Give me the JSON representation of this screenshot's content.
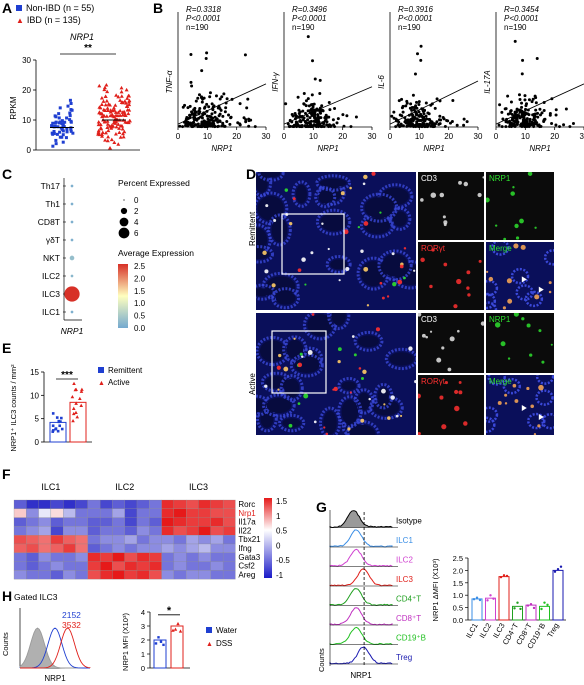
{
  "panels": [
    "A",
    "B",
    "C",
    "D",
    "E",
    "F",
    "G",
    "H"
  ],
  "panel_a": {
    "legend": [
      {
        "label": "Non-IBD (n = 55)",
        "color": "#1f3fd1",
        "marker": "square"
      },
      {
        "label": "IBD (n = 135)",
        "color": "#e0201b",
        "marker": "triangle"
      }
    ],
    "title": "NRP1",
    "ylabel": "RPKM",
    "sig": "**"
  },
  "panel_b": {
    "xlabel": "NRP1",
    "plots": [
      {
        "ylabel": "TNF-α",
        "R": "R=0.3318",
        "P": "P<0.0001",
        "n": "n=190"
      },
      {
        "ylabel": "IFN-γ",
        "R": "R=0.3496",
        "P": "P<0.0001",
        "n": "n=190"
      },
      {
        "ylabel": "IL-6",
        "R": "R=0.3916",
        "P": "P<0.0001",
        "n": "n=190"
      },
      {
        "ylabel": "IL-17A",
        "R": "R=0.3454",
        "P": "P<0.0001",
        "n": "n=190"
      }
    ]
  },
  "panel_c": {
    "cells": [
      "Th17",
      "Th1",
      "CD8T",
      "γδT",
      "NKT",
      "ILC2",
      "ILC3",
      "ILC1"
    ],
    "xlabel": "NRP1",
    "size_title": "Percent Expressed",
    "size_ticks": [
      "0",
      "2",
      "4",
      "6"
    ],
    "color_title": "Average Expression",
    "color_ticks": [
      "2.5",
      "2.0",
      "1.5",
      "1.0",
      "0.5",
      "0.0"
    ]
  },
  "panel_d": {
    "rows": [
      "Remittent",
      "Active"
    ],
    "channels": [
      "CD3",
      "NRP1",
      "RORγt",
      "Merge"
    ],
    "channel_colors": [
      "#ffffff",
      "#2ee02e",
      "#ff3030",
      "#ffffff"
    ]
  },
  "panel_e": {
    "ylabel": "NRP1⁺ ILC3 counts / mm²",
    "legend": [
      {
        "label": "Remittent",
        "color": "#1f3fd1"
      },
      {
        "label": "Active",
        "color": "#e0201b"
      }
    ],
    "sig": "***"
  },
  "panel_f": {
    "groups": [
      "ILC1",
      "ILC2",
      "ILC3"
    ],
    "genes": [
      "Rorc",
      "Nrp1",
      "Il17a",
      "Il22",
      "Tbx21",
      "Ifng",
      "Gata3",
      "Csf2",
      "Areg"
    ],
    "gene_colors": [
      "#000000",
      "#e0201b",
      "#000000",
      "#000000",
      "#000000",
      "#000000",
      "#000000",
      "#000000",
      "#000000"
    ],
    "scale_ticks": [
      "1.5",
      "1",
      "0.5",
      "0",
      "-0.5",
      "-1"
    ]
  },
  "panel_g": {
    "rows": [
      {
        "label": "Isotype",
        "color": "#000000"
      },
      {
        "label": "ILC1",
        "color": "#3a8ee6"
      },
      {
        "label": "ILC2",
        "color": "#d040d0"
      },
      {
        "label": "ILC3",
        "color": "#e0201b"
      },
      {
        "label": "CD4⁺T",
        "color": "#20a020"
      },
      {
        "label": "CD8⁺T",
        "color": "#c030c0"
      },
      {
        "label": "CD19⁺B",
        "color": "#20c020"
      },
      {
        "label": "Treg",
        "color": "#1a1ab0"
      }
    ],
    "xlabel": "NRP1",
    "ylabel": "Counts",
    "bar_ylabel": "NRP1 ΔMFI (X10³)",
    "bar_ticks": [
      "2.5",
      "2.0",
      "1.5",
      "1.0",
      "0.5",
      "0.0"
    ]
  },
  "panel_h": {
    "title": "Gated ILC3",
    "mfi_values": [
      {
        "label": "2152",
        "color": "#1f3fd1"
      },
      {
        "label": "3532",
        "color": "#e0201b"
      }
    ],
    "xlabel": "NRP1",
    "ylabel": "Counts",
    "bar_ylabel": "NRP1 MFI (X10³)",
    "sig": "*",
    "legend": [
      {
        "label": "Water",
        "color": "#1f3fd1"
      },
      {
        "label": "DSS",
        "color": "#e0201b"
      }
    ]
  },
  "chart_data": [
    {
      "type": "scatter",
      "panel": "A",
      "title": "NRP1",
      "ylabel": "RPKM",
      "categories": [
        "Non-IBD",
        "IBD"
      ],
      "ylim": [
        0,
        30
      ],
      "yticks": [
        0,
        10,
        20,
        30
      ],
      "series": [
        {
          "name": "Non-IBD (n = 55)",
          "color": "#1f3fd1",
          "mean": 7.5
        },
        {
          "name": "IBD (n = 135)",
          "color": "#e0201b",
          "mean": 10
        }
      ]
    },
    {
      "type": "scatter",
      "panel": "B",
      "ylabel": "TNF-α",
      "xlabel": "NRP1",
      "xlim": [
        0,
        30
      ],
      "xticks": [
        0,
        10,
        20,
        30
      ],
      "ylim": [
        0,
        80
      ],
      "fit": {
        "x": [
          0,
          30
        ],
        "y": [
          2,
          30
        ]
      }
    },
    {
      "type": "scatter",
      "panel": "B",
      "ylabel": "IFN-γ",
      "xlabel": "NRP1",
      "xlim": [
        0,
        30
      ],
      "xticks": [
        0,
        10,
        20,
        30
      ],
      "ylim": [
        0,
        80
      ],
      "fit": {
        "x": [
          0,
          30
        ],
        "y": [
          2,
          28
        ]
      }
    },
    {
      "type": "scatter",
      "panel": "B",
      "ylabel": "IL-6",
      "xlabel": "NRP1",
      "xlim": [
        0,
        30
      ],
      "xticks": [
        0,
        10,
        20,
        30
      ],
      "ylim": [
        0,
        80
      ],
      "fit": {
        "x": [
          0,
          30
        ],
        "y": [
          2,
          32
        ]
      }
    },
    {
      "type": "scatter",
      "panel": "B",
      "ylabel": "IL-17A",
      "xlabel": "NRP1",
      "xlim": [
        0,
        30
      ],
      "xticks": [
        0,
        10,
        20,
        30
      ],
      "ylim": [
        0,
        80
      ],
      "fit": {
        "x": [
          0,
          30
        ],
        "y": [
          2,
          30
        ]
      }
    },
    {
      "type": "scatter",
      "panel": "C",
      "xlabel": "NRP1",
      "categories": [
        "Th17",
        "Th1",
        "CD8T",
        "γδT",
        "NKT",
        "ILC2",
        "ILC3",
        "ILC1"
      ],
      "percent_expressed": [
        0.2,
        0.2,
        0.2,
        0.2,
        0.6,
        0.2,
        6.5,
        0.2
      ],
      "average_expression": [
        0.1,
        0.1,
        0.1,
        0.1,
        0.3,
        0.2,
        2.5,
        0.1
      ]
    },
    {
      "type": "bar",
      "panel": "E",
      "categories": [
        "Remittent",
        "Active"
      ],
      "values": [
        4.2,
        8.5
      ],
      "ylim": [
        0,
        15
      ],
      "yticks": [
        0,
        5,
        10,
        15
      ]
    },
    {
      "type": "heatmap",
      "panel": "F",
      "categories": [
        "ILC1",
        "ILC2",
        "ILC3"
      ],
      "genes": [
        "Rorc",
        "Nrp1",
        "Il17a",
        "Il22",
        "Tbx21",
        "Ifng",
        "Gata3",
        "Csf2",
        "Areg"
      ],
      "values": [
        [
          -0.7,
          -0.9,
          -0.9,
          -0.8,
          -0.9,
          -0.8,
          -0.6,
          -0.8,
          -0.7,
          -0.8,
          -0.7,
          -0.6,
          1.2,
          1.1,
          1.0,
          1.2,
          1.1,
          1.0
        ],
        [
          0.3,
          -0.5,
          -0.1,
          0.2,
          -0.3,
          -0.6,
          -0.6,
          -0.6,
          -0.4,
          -0.8,
          -0.6,
          -0.6,
          1.2,
          1.3,
          1.1,
          1.1,
          1.0,
          1.0
        ],
        [
          -0.7,
          -0.6,
          -0.5,
          -0.7,
          -0.6,
          -0.6,
          -0.7,
          -0.7,
          -0.6,
          -0.8,
          -0.6,
          -0.7,
          1.3,
          1.2,
          1.1,
          1.1,
          1.2,
          1.0
        ],
        [
          -0.6,
          -0.5,
          -0.4,
          -0.8,
          -0.5,
          -0.5,
          -0.7,
          -0.6,
          -0.6,
          -0.7,
          -0.5,
          -0.6,
          1.2,
          1.0,
          1.1,
          1.3,
          1.0,
          1.1
        ],
        [
          1.0,
          0.9,
          0.8,
          1.1,
          0.9,
          0.8,
          -0.6,
          -0.5,
          -0.5,
          -0.4,
          -0.6,
          -0.5,
          -0.5,
          -0.6,
          -0.4,
          -0.5,
          -0.4,
          -0.6
        ],
        [
          0.9,
          1.0,
          0.8,
          0.9,
          1.1,
          0.8,
          -0.7,
          -0.6,
          -0.5,
          -0.6,
          -0.5,
          -0.5,
          -0.4,
          -0.5,
          -0.4,
          -0.3,
          -0.5,
          -0.5
        ],
        [
          -0.6,
          -0.7,
          -0.5,
          -0.6,
          -0.6,
          -0.5,
          1.2,
          1.1,
          1.3,
          1.0,
          1.2,
          1.1,
          -0.6,
          -0.5,
          -0.6,
          -0.5,
          -0.6,
          -0.6
        ],
        [
          -0.6,
          -0.7,
          -0.6,
          -0.5,
          -0.6,
          -0.6,
          1.1,
          1.3,
          1.0,
          1.2,
          1.1,
          1.2,
          -0.6,
          -0.5,
          -0.6,
          -0.6,
          -0.5,
          -0.6
        ],
        [
          -0.5,
          -0.6,
          -0.6,
          -0.7,
          -0.5,
          -0.6,
          1.0,
          1.2,
          1.3,
          1.1,
          1.2,
          1.0,
          -0.5,
          -0.6,
          -0.5,
          -0.5,
          -0.6,
          -0.6
        ]
      ],
      "scale": [
        -1,
        1.5
      ]
    },
    {
      "type": "bar",
      "panel": "G",
      "ylabel": "NRP1 ΔMFI (X10³)",
      "categories": [
        "ILC1",
        "ILC2",
        "ILC3",
        "CD4⁺T",
        "CD8⁺T",
        "CD19⁺B",
        "Treg"
      ],
      "values": [
        0.85,
        0.88,
        1.75,
        0.55,
        0.6,
        0.55,
        2.0
      ],
      "colors": [
        "#3a8ee6",
        "#d040d0",
        "#e0201b",
        "#20a020",
        "#c030c0",
        "#20c020",
        "#1a1ab0"
      ],
      "ylim": [
        0,
        2.5
      ],
      "yticks": [
        0,
        0.5,
        1.0,
        1.5,
        2.0,
        2.5
      ]
    },
    {
      "type": "bar",
      "panel": "H",
      "ylabel": "NRP1 MFI (X10³)",
      "categories": [
        "Water",
        "DSS"
      ],
      "values": [
        2.0,
        3.0
      ],
      "ylim": [
        0,
        4
      ],
      "yticks": [
        0,
        1,
        2,
        3,
        4
      ]
    }
  ]
}
